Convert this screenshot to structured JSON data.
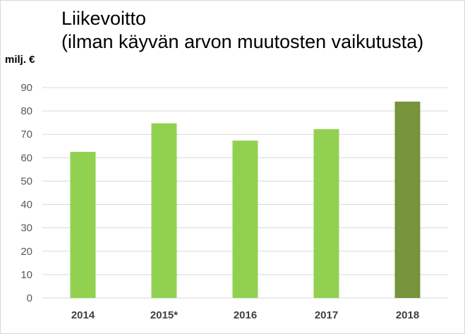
{
  "chart_data": {
    "type": "bar",
    "title_line1": "Liikevoitto",
    "title_line2": "(ilman käyvän arvon muutosten vaikutusta)",
    "ylabel": "milj. €",
    "xlabel": "",
    "categories": [
      "2014",
      "2015*",
      "2016",
      "2017",
      "2018"
    ],
    "values": [
      62.5,
      74.7,
      67.3,
      72.2,
      84.0
    ],
    "ylim": [
      0,
      90
    ],
    "yticks": [
      0,
      10,
      20,
      30,
      40,
      50,
      60,
      70,
      80,
      90
    ],
    "grid": true,
    "legend": "none",
    "colors": {
      "bar": "#92d050",
      "highlight_bar": "#77933c",
      "grid": "#d9d9d9"
    },
    "highlight_index": 4
  }
}
